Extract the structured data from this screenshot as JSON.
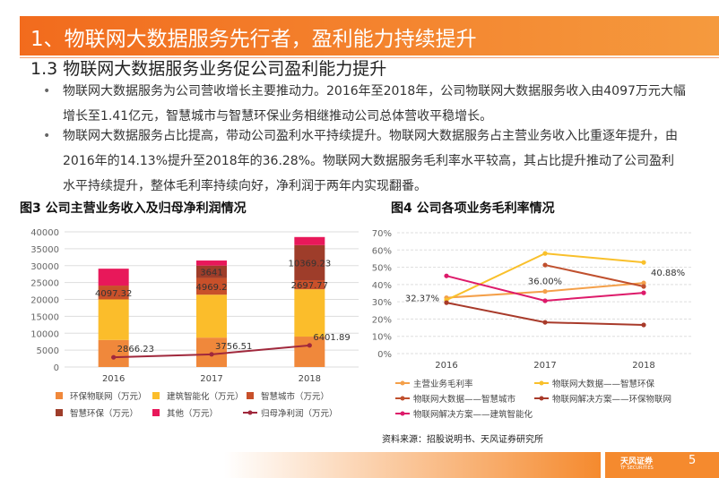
{
  "header": {
    "title": "1、物联网大数据服务先行者，盈利能力持续提升",
    "subtitle": "1.3 物联网大数据服务业务促公司盈利能力提升"
  },
  "bullets": [
    "物联网大数据服务为公司营收增长主要推动力。2016年至2018年，公司物联网大数据服务收入由4097万元大幅增长至1.41亿元，智慧城市与智慧环保业务相继推动公司总体营收平稳增长。",
    "物联网大数据服务占比提高，带动公司盈利水平持续提升。物联网大数据服务占主营业务收入比重逐年提升，由2016年的14.13%提升至2018年的36.28%。物联网大数据服务毛利率水平较高，其占比提升推动了公司盈利水平持续提升，整体毛利率持续向好，净利润于两年内实现翻番。"
  ],
  "chart_data": [
    {
      "type": "bar",
      "stacked": true,
      "title": "图3  公司主营业务收入及归母净利润情况",
      "categories": [
        "2016",
        "2017",
        "2018"
      ],
      "series": [
        {
          "name": "环保物联网（万元）",
          "color": "#f0883b",
          "values": [
            8000,
            8700,
            9000
          ]
        },
        {
          "name": "建筑智能化（万元）",
          "color": "#fbbd2b",
          "values": [
            12000,
            12700,
            14000
          ]
        },
        {
          "name": "智慧城市（万元）",
          "color": "#c8502a",
          "values": [
            4097.32,
            4969.2,
            2697.77
          ],
          "show_labels": true
        },
        {
          "name": "智慧环保（万元）",
          "color": "#9e3d2a",
          "values": [
            0,
            3641,
            10369.23
          ],
          "show_labels": true
        },
        {
          "name": "其他（万元）",
          "color": "#e8185a",
          "values": [
            5000,
            1500,
            2400
          ]
        },
        {
          "name": "归母净利润（万元）",
          "color": "#a0283c",
          "type": "line",
          "values": [
            2866.23,
            3756.51,
            6401.89
          ],
          "show_labels": true
        }
      ],
      "ylim": [
        0,
        40000
      ],
      "yticks": [
        0,
        5000,
        10000,
        15000,
        20000,
        25000,
        30000,
        35000,
        40000
      ],
      "grid": true
    },
    {
      "type": "line",
      "title": "图4  公司各项业务毛利率情况",
      "categories": [
        "2016",
        "2017",
        "2018"
      ],
      "series": [
        {
          "name": "主营业务毛利率",
          "color": "#f4a04a",
          "values": [
            32.37,
            36.0,
            40.88
          ],
          "value_labels": [
            "32.37%",
            "36.00%",
            "40.88%"
          ]
        },
        {
          "name": "物联网大数据——智慧环保",
          "color": "#f9c02b",
          "values": [
            31,
            58,
            52.8
          ]
        },
        {
          "name": "物联网大数据——智慧城市",
          "color": "#c0502e",
          "values": [
            null,
            51.3,
            38.9
          ]
        },
        {
          "name": "物联网解决方案——环保物联网",
          "color": "#a83a2a",
          "values": [
            29.5,
            18.1,
            16.6
          ]
        },
        {
          "name": "物联网解决方案——建筑智能化",
          "color": "#dd1a6a",
          "values": [
            45,
            30.6,
            35.2
          ]
        }
      ],
      "ylim": [
        0,
        70
      ],
      "yticks": [
        {
          "value": 0,
          "label": "0%"
        },
        {
          "value": 10,
          "label": "10%"
        },
        {
          "value": 20,
          "label": "20%"
        },
        {
          "value": 30,
          "label": "30%"
        },
        {
          "value": 40,
          "label": "40%"
        },
        {
          "value": 50,
          "label": "50%"
        },
        {
          "value": 60,
          "label": "60%"
        },
        {
          "value": 70,
          "label": "70%"
        }
      ],
      "grid": true
    }
  ],
  "source": "资料来源：招股说明书、天风证券研究所",
  "footer": {
    "logo": "天风证券",
    "logo_en": "TF SECURITIES",
    "page": "5"
  }
}
